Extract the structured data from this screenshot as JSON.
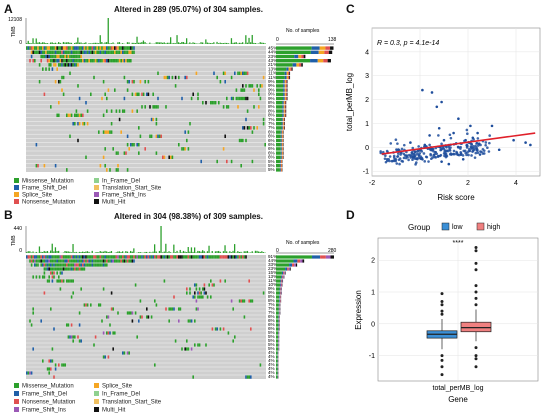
{
  "panels": {
    "A": {
      "letter": "A",
      "title": "Altered in 289 (95.07%) of 304 samples.",
      "tmb_label": "TMB",
      "tmb_max": "12108",
      "tmb_min": "0",
      "nsamples_label": "No. of samples",
      "nsamples_ticks": [
        "0",
        "138"
      ],
      "percents": [
        "45%",
        "44%",
        "23%",
        "43%",
        "21%",
        "13%",
        "11%",
        "11%",
        "9%",
        "9%",
        "9%",
        "9%",
        "9%",
        "8%",
        "8%",
        "8%",
        "8%",
        "7%",
        "7%",
        "7%",
        "6%",
        "6%",
        "6%",
        "6%",
        "6%",
        "6%",
        "6%",
        "5%",
        "5%",
        "5%"
      ],
      "legend": [
        {
          "label": "Missense_Mutation",
          "color": "#2ca02c"
        },
        {
          "label": "In_Frame_Del",
          "color": "#8fd18f"
        },
        {
          "label": "Frame_Shift_Del",
          "color": "#1f5fa8"
        },
        {
          "label": "Translation_Start_Site",
          "color": "#f0c060"
        },
        {
          "label": "Splice_Site",
          "color": "#f5a623"
        },
        {
          "label": "Frame_Shift_Ins",
          "color": "#9b59b6"
        },
        {
          "label": "Nonsense_Mutation",
          "color": "#e05050"
        },
        {
          "label": "Multi_Hit",
          "color": "#111111"
        }
      ]
    },
    "B": {
      "letter": "B",
      "title": "Altered in 304 (98.38%) of 309 samples.",
      "tmb_label": "TMB",
      "tmb_max": "440",
      "tmb_min": "0",
      "nsamples_label": "No. of samples",
      "nsamples_ticks": [
        "0",
        "280"
      ],
      "percents": [
        "91%",
        "44%",
        "33%",
        "23%",
        "15%",
        "13%",
        "11%",
        "10%",
        "9%",
        "9%",
        "8%",
        "8%",
        "7%",
        "7%",
        "7%",
        "6%",
        "6%",
        "6%",
        "6%",
        "5%",
        "5%",
        "5%",
        "5%",
        "5%",
        "4%",
        "4%",
        "4%",
        "4%",
        "4%",
        "4%",
        "4%"
      ],
      "legend": [
        {
          "label": "Missense_Mutation",
          "color": "#2ca02c"
        },
        {
          "label": "Splice_Site",
          "color": "#f5a623"
        },
        {
          "label": "Frame_Shift_Del",
          "color": "#1f5fa8"
        },
        {
          "label": "In_Frame_Del",
          "color": "#8fd18f"
        },
        {
          "label": "Nonsense_Mutation",
          "color": "#e05050"
        },
        {
          "label": "Translation_Start_Site",
          "color": "#f0c060"
        },
        {
          "label": "Frame_Shift_Ins",
          "color": "#9b59b6"
        },
        {
          "label": "Multi_Hit",
          "color": "#111111"
        }
      ]
    },
    "C": {
      "letter": "C"
    },
    "D": {
      "letter": "D"
    }
  },
  "colors": {
    "grid_bg": "#cfcfcf",
    "scatter_point": "#1f4e9c",
    "fit_line": "#e0202a",
    "low_box": "#3b8fd6",
    "high_box": "#f08080"
  },
  "chart_data": [
    {
      "type": "heatmap",
      "panel": "A",
      "title": "Altered in 289 (95.07%) of 304 samples.",
      "samples_altered": 289,
      "samples_total": 304,
      "percent_altered": 95.07,
      "tmb_axis": [
        0,
        12108
      ],
      "count_axis": [
        0,
        138
      ],
      "gene_frequencies_percent": [
        45,
        44,
        23,
        43,
        21,
        13,
        11,
        11,
        9,
        9,
        9,
        9,
        9,
        8,
        8,
        8,
        8,
        7,
        7,
        7,
        6,
        6,
        6,
        6,
        6,
        6,
        6,
        5,
        5,
        5
      ]
    },
    {
      "type": "heatmap",
      "panel": "B",
      "title": "Altered in 304 (98.38%) of 309 samples.",
      "samples_altered": 304,
      "samples_total": 309,
      "percent_altered": 98.38,
      "tmb_axis": [
        0,
        440
      ],
      "count_axis": [
        0,
        280
      ],
      "gene_frequencies_percent": [
        91,
        44,
        33,
        23,
        15,
        13,
        11,
        10,
        9,
        9,
        8,
        8,
        7,
        7,
        7,
        6,
        6,
        6,
        6,
        5,
        5,
        5,
        5,
        5,
        4,
        4,
        4,
        4,
        4,
        4,
        4
      ]
    },
    {
      "type": "scatter",
      "panel": "C",
      "annotation": "R = 0.3, p = 4.1e-14",
      "xlabel": "Risk score",
      "ylabel": "total_perMB_log",
      "xlim": [
        -2,
        5
      ],
      "ylim": [
        -1.2,
        5
      ],
      "xticks": [
        "-2",
        "0",
        "2",
        "4"
      ],
      "yticks": [
        "-1",
        "0",
        "1",
        "2",
        "3",
        "4"
      ],
      "fit_line": {
        "x": [
          -1.6,
          4.8
        ],
        "y": [
          -0.28,
          0.6
        ]
      },
      "points_note": "approximate cluster; estimated",
      "points": [
        [
          0.1,
          2.4
        ],
        [
          0.5,
          2.3
        ],
        [
          0.9,
          1.9
        ],
        [
          0.7,
          1.7
        ],
        [
          1.6,
          1.2
        ],
        [
          2.1,
          0.9
        ],
        [
          2.4,
          0.6
        ],
        [
          3.0,
          0.9
        ],
        [
          4.4,
          0.2
        ],
        [
          4.6,
          0.1
        ],
        [
          -0.3,
          -0.4
        ],
        [
          0.1,
          -0.5
        ],
        [
          0.9,
          -0.6
        ],
        [
          1.8,
          -0.5
        ],
        [
          2.5,
          -0.3
        ],
        [
          3.3,
          -0.1
        ],
        [
          3.9,
          0.3
        ],
        [
          1.2,
          -0.7
        ],
        [
          -0.8,
          -0.2
        ],
        [
          0.4,
          0.5
        ],
        [
          0.8,
          0.8
        ],
        [
          1.4,
          0.6
        ],
        [
          1.0,
          0.3
        ],
        [
          1.9,
          0.3
        ],
        [
          0.2,
          0.1
        ],
        [
          -0.4,
          0.2
        ],
        [
          1.6,
          0.0
        ],
        [
          2.2,
          0.4
        ],
        [
          0.6,
          -0.3
        ],
        [
          1.3,
          -0.3
        ]
      ]
    },
    {
      "type": "box",
      "panel": "D",
      "title": "Group",
      "legend": [
        "low",
        "high"
      ],
      "xlabel": "Gene",
      "ylabel": "Expression",
      "category": "total_perMB_log",
      "significance": "****",
      "ylim": [
        -1.8,
        2.7
      ],
      "yticks": [
        "-1",
        "0",
        "1",
        "2"
      ],
      "series": [
        {
          "name": "low",
          "q1": -0.45,
          "median": -0.33,
          "q3": -0.22,
          "whisker_low": -0.8,
          "whisker_high": 0.15,
          "outliers": [
            0.95,
            0.7,
            0.6,
            0.4,
            0.3,
            -1.0,
            -1.15,
            -1.35,
            -1.6
          ]
        },
        {
          "name": "high",
          "q1": -0.25,
          "median": -0.12,
          "q3": 0.05,
          "whisker_low": -0.55,
          "whisker_high": 0.45,
          "outliers": [
            2.4,
            2.3,
            1.9,
            1.7,
            1.2,
            1.0,
            0.8,
            0.6,
            -0.75,
            -1.0,
            -1.1,
            -1.35
          ]
        }
      ]
    }
  ]
}
